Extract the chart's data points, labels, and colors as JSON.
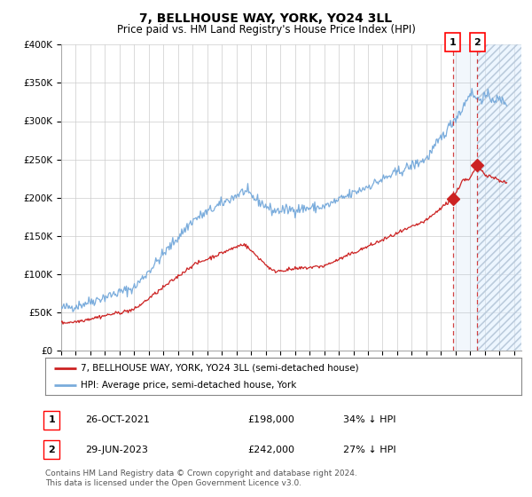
{
  "title": "7, BELLHOUSE WAY, YORK, YO24 3LL",
  "subtitle": "Price paid vs. HM Land Registry's House Price Index (HPI)",
  "ylim": [
    0,
    400000
  ],
  "yticks": [
    0,
    50000,
    100000,
    150000,
    200000,
    250000,
    300000,
    350000,
    400000
  ],
  "ytick_labels": [
    "£0",
    "£50K",
    "£100K",
    "£150K",
    "£200K",
    "£250K",
    "£300K",
    "£350K",
    "£400K"
  ],
  "xlim_start": 1995.0,
  "xlim_end": 2026.5,
  "hpi_color": "#7aacdc",
  "price_color": "#cc2222",
  "bg_color": "#ffffff",
  "grid_color": "#cccccc",
  "sale1_date": 2021.82,
  "sale1_price": 198000,
  "sale1_label": "1",
  "sale2_date": 2023.49,
  "sale2_price": 242000,
  "sale2_label": "2",
  "legend_line1": "7, BELLHOUSE WAY, YORK, YO24 3LL (semi-detached house)",
  "legend_line2": "HPI: Average price, semi-detached house, York",
  "table_row1": [
    "1",
    "26-OCT-2021",
    "£198,000",
    "34% ↓ HPI"
  ],
  "table_row2": [
    "2",
    "29-JUN-2023",
    "£242,000",
    "27% ↓ HPI"
  ],
  "footnote": "Contains HM Land Registry data © Crown copyright and database right 2024.\nThis data is licensed under the Open Government Licence v3.0.",
  "title_fontsize": 10,
  "subtitle_fontsize": 8.5,
  "tick_fontsize": 7.5,
  "legend_fontsize": 7.5,
  "table_fontsize": 8,
  "footnote_fontsize": 6.5
}
